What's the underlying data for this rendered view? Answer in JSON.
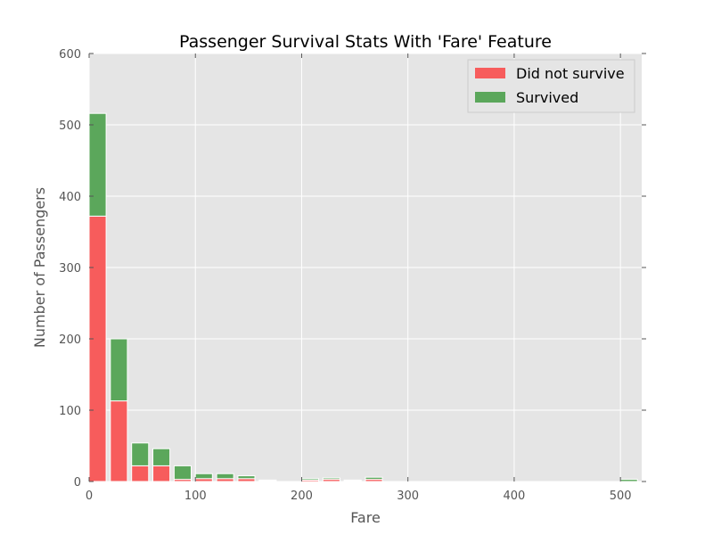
{
  "chart_data": {
    "type": "bar",
    "stacked": true,
    "title": "Passenger Survival Stats With 'Fare' Feature",
    "xlabel": "Fare",
    "ylabel": "Number of Passengers",
    "xlim": [
      0,
      520
    ],
    "ylim": [
      0,
      600
    ],
    "xticks": [
      0,
      100,
      200,
      300,
      400,
      500
    ],
    "yticks": [
      0,
      100,
      200,
      300,
      400,
      500,
      600
    ],
    "grid": true,
    "legend_position": "top-right",
    "bin_starts": [
      0,
      20,
      40,
      60,
      80,
      100,
      120,
      140,
      160,
      180,
      200,
      220,
      240,
      260,
      280,
      300,
      320,
      340,
      360,
      380,
      400,
      420,
      440,
      460,
      480,
      500
    ],
    "bin_width": 20,
    "series": [
      {
        "name": "Did not survive",
        "color": "#f75c5c",
        "values": [
          372,
          113,
          22,
          22,
          3,
          4,
          4,
          4,
          1,
          0,
          2,
          3,
          1,
          3,
          0,
          0,
          0,
          0,
          0,
          0,
          0,
          0,
          0,
          0,
          0,
          0
        ]
      },
      {
        "name": "Survived",
        "color": "#5ba75b",
        "values": [
          144,
          87,
          32,
          24,
          19,
          7,
          7,
          4,
          1,
          0,
          2,
          2,
          1,
          3,
          0,
          0,
          0,
          0,
          0,
          0,
          0,
          0,
          0,
          0,
          0,
          3
        ]
      }
    ]
  }
}
